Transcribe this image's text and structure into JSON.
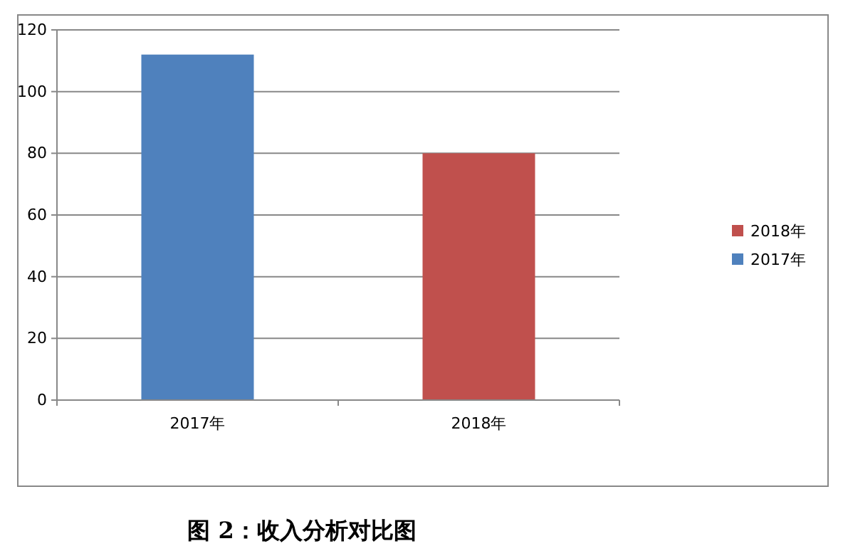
{
  "chart_data": {
    "type": "bar",
    "title": "图 2：收入分析对比图",
    "categories": [
      "2017年",
      "2018年"
    ],
    "stacked": true,
    "series": [
      {
        "name": "2017年",
        "color": "#4f81bd",
        "values": [
          112,
          null
        ]
      },
      {
        "name": "2018年",
        "color": "#c0504d",
        "values": [
          null,
          80
        ]
      }
    ],
    "ylim": [
      0,
      120
    ],
    "yticks": [
      0,
      20,
      40,
      60,
      80,
      100,
      120
    ],
    "grid": "y",
    "legend": "right"
  }
}
